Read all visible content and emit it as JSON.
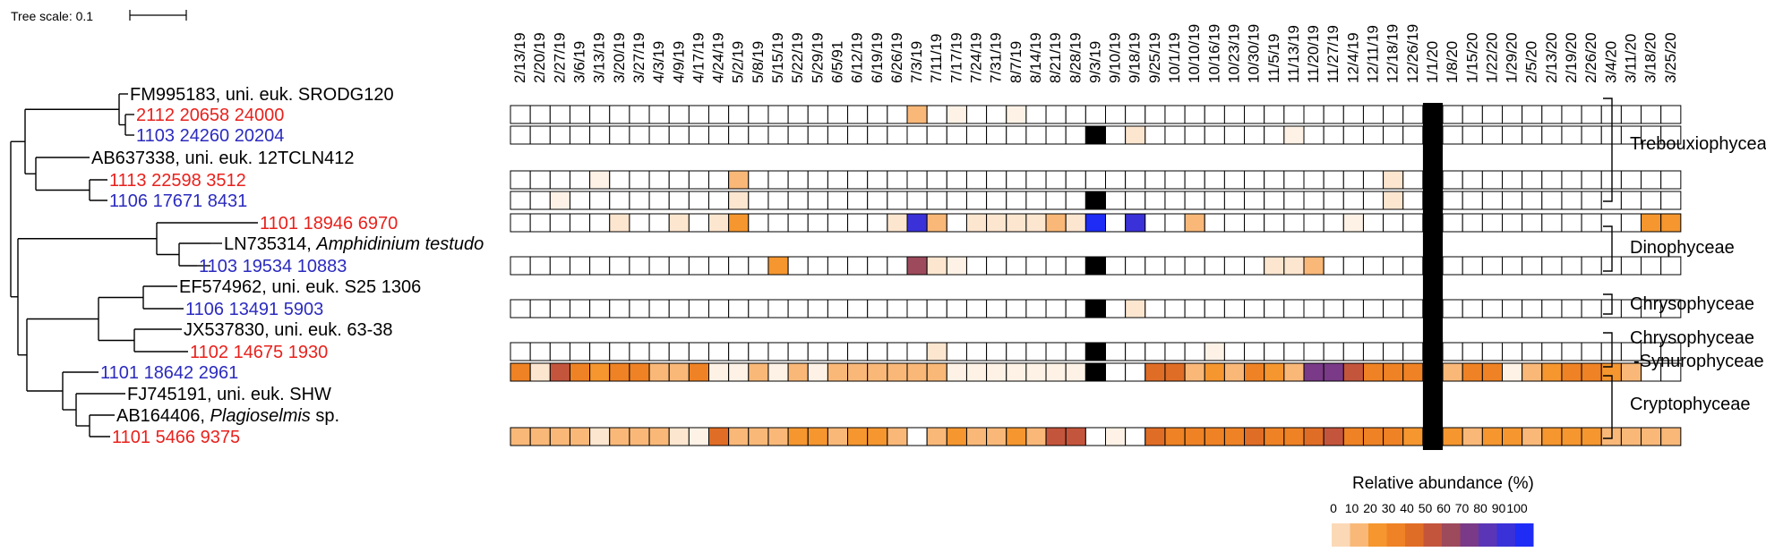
{
  "tree_scale": {
    "label": "Tree scale: 0.1"
  },
  "dates": [
    "2/13/19",
    "2/20/19",
    "2/27/19",
    "3/6/19",
    "3/13/19",
    "3/20/19",
    "3/27/19",
    "4/3/19",
    "4/9/19",
    "4/17/19",
    "4/24/19",
    "5/2/19",
    "5/8/19",
    "5/15/19",
    "5/22/19",
    "5/29/19",
    "6/5/91",
    "6/12/19",
    "6/19/19",
    "6/26/19",
    "7/3/19",
    "7/11/19",
    "7/17/19",
    "7/24/19",
    "7/31/19",
    "8/7/19",
    "8/14/19",
    "8/21/19",
    "8/28/19",
    "9/3/19",
    "9/10/19",
    "9/18/19",
    "9/25/19",
    "10/1/19",
    "10/10/19",
    "10/16/19",
    "10/23/19",
    "10/30/19",
    "11/5/19",
    "11/13/19",
    "11/20/19",
    "11/27/19",
    "12/4/19",
    "12/11/19",
    "12/18/19",
    "12/26/19",
    "1/1/20",
    "1/8/20",
    "1/15/20",
    "1/22/20",
    "1/29/20",
    "2/5/20",
    "2/13/20",
    "2/19/20",
    "2/26/20",
    "3/4/20",
    "3/11/20",
    "3/18/20",
    "3/25/20"
  ],
  "leaves": [
    {
      "id": "l0",
      "text": "FM995183, uni. euk. SRODG120",
      "color": "#000000"
    },
    {
      "id": "l1",
      "text": "2112 20658 24000",
      "color": "#e8211c"
    },
    {
      "id": "l2",
      "text": "1103 24260 20204",
      "color": "#2b2bbf"
    },
    {
      "id": "l3",
      "text": "AB637338, uni. euk. 12TCLN412",
      "color": "#000000"
    },
    {
      "id": "l4",
      "text": "1113 22598 3512",
      "color": "#e8211c"
    },
    {
      "id": "l5",
      "text": "1106 17671 8431",
      "color": "#2b2bbf"
    },
    {
      "id": "l6",
      "text": "1101 18946 6970",
      "color": "#e8211c"
    },
    {
      "id": "l7",
      "prefix": "LN735314, ",
      "italic": "Amphidinium testudo",
      "color": "#000000"
    },
    {
      "id": "l8",
      "text": "1103 19534 10883",
      "color": "#2b2bbf"
    },
    {
      "id": "l9",
      "text": "EF574962, uni. euk. S25 1306",
      "color": "#000000"
    },
    {
      "id": "l10",
      "text": "1106 13491 5903",
      "color": "#2b2bbf"
    },
    {
      "id": "l11",
      "text": "JX537830, uni. euk. 63-38",
      "color": "#000000"
    },
    {
      "id": "l12",
      "text": "1102 14675 1930",
      "color": "#e8211c"
    },
    {
      "id": "l13",
      "text": "1101 18642 2961",
      "color": "#2b2bbf"
    },
    {
      "id": "l14",
      "text": "FJ745191, uni. euk. SHW",
      "color": "#000000"
    },
    {
      "id": "l15",
      "prefix": "AB164406, ",
      "italic": "Plagioselmis",
      "suffix": " sp.",
      "color": "#000000"
    },
    {
      "id": "l16",
      "text": "1101 5466 9375",
      "color": "#e8211c"
    }
  ],
  "heatmap_rows": [
    {
      "leaf": "l1",
      "cells": {
        "20": 1,
        "22": 0.3,
        "25": 0.3
      }
    },
    {
      "leaf": "l2",
      "cells": {
        "29": "k",
        "31": 0.5,
        "46": "k",
        "39": 0.3
      }
    },
    {
      "leaf": "l4",
      "cells": {
        "4": 0.3,
        "11": 1,
        "44": 0.5
      }
    },
    {
      "leaf": "l5",
      "cells": {
        "11": 0.5,
        "29": "k",
        "44": 0.5,
        "2": 0.3
      }
    },
    {
      "leaf": "l6",
      "cells": {
        "5": 0.5,
        "8": 0.5,
        "10": 0.5,
        "11": 2,
        "19": 0.5,
        "20": 9,
        "21": 1,
        "23": 0.5,
        "24": 0.5,
        "25": 0.5,
        "26": 0.5,
        "27": 1,
        "28": 0.5,
        "29": 10,
        "31": 9,
        "34": 1,
        "42": 0.3,
        "57": 2,
        "58": 2
      }
    },
    {
      "leaf": "l8",
      "cells": {
        "13": 2,
        "20": 6,
        "21": 0.5,
        "22": 0.3,
        "29": "k",
        "38": 0.5,
        "39": 0.5,
        "40": 1,
        "46": "k"
      }
    },
    {
      "leaf": "l10",
      "cells": {
        "29": "k",
        "31": 0.5,
        "46": "k"
      }
    },
    {
      "leaf": "l12",
      "cells": {
        "21": 0.5,
        "29": "k",
        "35": 0.3,
        "46": "k"
      }
    },
    {
      "leaf": "l13",
      "cells": {
        "0": 3,
        "1": 0.5,
        "2": 5,
        "3": 3,
        "4": 2,
        "5": 3,
        "6": 3,
        "7": 1,
        "8": 1,
        "9": 3,
        "10": 0.3,
        "11": 0.3,
        "12": 1,
        "13": 0.3,
        "14": 1,
        "15": 0.3,
        "16": 1,
        "17": 1,
        "18": 1,
        "19": 1,
        "20": 1,
        "21": 1,
        "22": 0.3,
        "23": 0.3,
        "24": 0.3,
        "25": 0.3,
        "26": 0.3,
        "27": 0.3,
        "28": 0.3,
        "29": "k",
        "32": 4,
        "33": 4,
        "34": 1,
        "35": 2,
        "36": 1,
        "37": 3,
        "38": 2,
        "39": 1,
        "40": 7,
        "41": 7,
        "42": 5,
        "43": 3,
        "44": 3,
        "45": 3,
        "46": "k",
        "47": 1,
        "48": 3,
        "49": 3,
        "50": 0.3,
        "51": 1,
        "52": 2,
        "53": 3,
        "54": 3,
        "55": 2,
        "56": 1
      }
    },
    {
      "leaf": "l16",
      "cells": {
        "0": 1,
        "1": 1,
        "2": 1,
        "3": 1,
        "4": 0.5,
        "5": 1,
        "6": 1,
        "7": 1,
        "8": 0.5,
        "9": 0.3,
        "10": 4,
        "11": 1,
        "12": 1,
        "13": 1,
        "14": 2,
        "15": 2,
        "16": 1,
        "17": 2,
        "18": 2,
        "19": 1,
        "21": 1,
        "22": 2,
        "23": 1,
        "24": 1,
        "25": 2,
        "26": 1,
        "27": 5,
        "28": 5,
        "30": 0.3,
        "32": 4,
        "33": 3,
        "34": 3,
        "35": 3,
        "36": 3,
        "37": 4,
        "38": 3,
        "39": 3,
        "40": 4,
        "41": 5,
        "42": 3,
        "43": 3,
        "44": 3,
        "45": 2,
        "46": "k",
        "47": 2,
        "48": 1,
        "49": 2,
        "50": 2,
        "51": 1,
        "52": 2,
        "53": 2,
        "54": 2,
        "55": 1,
        "56": 1,
        "57": 1,
        "58": 1
      }
    }
  ],
  "classes": [
    {
      "label": "Trebouxiophyceae"
    },
    {
      "label": "Dinophyceae"
    },
    {
      "label": "Chrysophyceae"
    },
    {
      "label": "Chrysophyceae",
      "label2": "-Synurophyceae"
    },
    {
      "label": "Cryptophyceae"
    }
  ],
  "legend": {
    "title": "Relative abundance (%)",
    "ticks": [
      "0",
      "10",
      "20",
      "30",
      "40",
      "50",
      "60",
      "70",
      "80",
      "90",
      "100"
    ],
    "colors": [
      "#fcd9b6",
      "#f9b878",
      "#f5962f",
      "#ef8224",
      "#e06d26",
      "#c4553d",
      "#9d4a5c",
      "#7a3a87",
      "#5a36b6",
      "#3a31d8",
      "#1e2cf5"
    ]
  },
  "colors": {
    "black_cell": "#000000",
    "empty_cell": "#ffffff",
    "grid": "#000000"
  }
}
